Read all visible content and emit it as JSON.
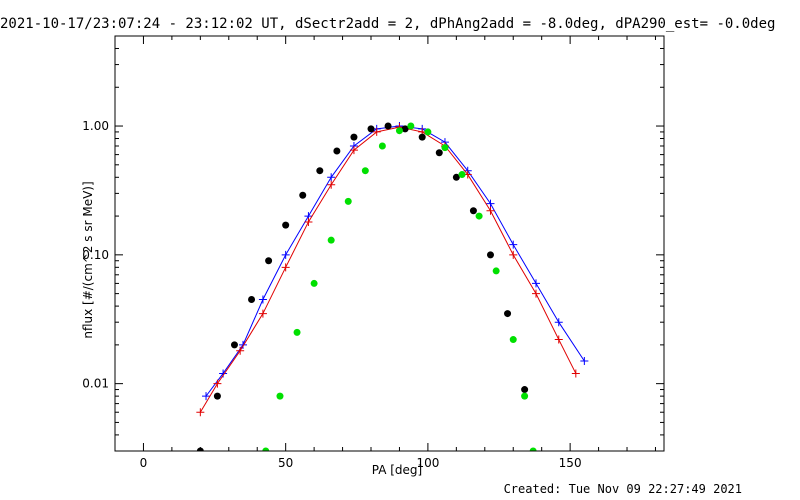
{
  "header": {
    "title": "2021-10-17/23:07:24 - 23:12:02 UT, dSectr2add = 2, dPhAng2add = -8.0deg, dPA290_est= -0.0deg"
  },
  "footer": {
    "created": "Created: Tue Nov 09 22:27:49 2021"
  },
  "chart_data": {
    "type": "line",
    "title": "2021-10-17/23:07:24 - 23:12:02 UT, dSectr2add = 2, dPhAng2add = -8.0deg, dPA290_est= -0.0deg",
    "xlabel": "PA [deg]",
    "ylabel": "nflux [#/(cm^2 s sr MeV)]",
    "xlim": [
      -10,
      183
    ],
    "ylim": [
      0.003,
      5
    ],
    "yscale": "log",
    "x_ticks": [
      "0",
      "50",
      "100",
      "150"
    ],
    "y_ticks": [
      "0.01",
      "0.10",
      "1.00"
    ],
    "grid": false,
    "colors": {
      "red_series": "#e00000",
      "blue_series": "#0000ff",
      "black_fit": "#000000",
      "green_fit": "#00e000"
    },
    "series": [
      {
        "color": "#0000ff",
        "marker": "plus",
        "x": [
          22,
          28,
          35,
          42,
          50,
          58,
          66,
          74,
          82,
          90,
          98,
          106,
          114,
          122,
          130,
          138,
          146,
          155
        ],
        "y": [
          0.008,
          0.012,
          0.02,
          0.045,
          0.1,
          0.2,
          0.4,
          0.7,
          0.95,
          1.0,
          0.95,
          0.75,
          0.45,
          0.25,
          0.12,
          0.06,
          0.03,
          0.015
        ]
      },
      {
        "color": "#e00000",
        "marker": "plus",
        "x": [
          20,
          26,
          34,
          42,
          50,
          58,
          66,
          74,
          82,
          90,
          98,
          106,
          114,
          122,
          130,
          138,
          146,
          152
        ],
        "y": [
          0.006,
          0.01,
          0.018,
          0.035,
          0.08,
          0.18,
          0.35,
          0.65,
          0.9,
          0.98,
          0.9,
          0.7,
          0.42,
          0.22,
          0.1,
          0.05,
          0.022,
          0.012
        ]
      },
      {
        "color": "#000000",
        "marker": "filled-circle",
        "x": [
          20,
          26,
          32,
          38,
          44,
          50,
          56,
          62,
          68,
          74,
          80,
          86,
          92,
          98,
          104,
          110,
          116,
          122,
          128,
          134
        ],
        "y": [
          0.003,
          0.008,
          0.02,
          0.045,
          0.09,
          0.17,
          0.29,
          0.45,
          0.64,
          0.82,
          0.95,
          1.0,
          0.95,
          0.82,
          0.62,
          0.4,
          0.22,
          0.1,
          0.035,
          0.009
        ]
      },
      {
        "color": "#00e000",
        "marker": "filled-circle",
        "x": [
          43,
          48,
          54,
          60,
          66,
          72,
          78,
          84,
          90,
          94,
          100,
          106,
          112,
          118,
          124,
          130,
          134,
          137
        ],
        "y": [
          0.003,
          0.008,
          0.025,
          0.06,
          0.13,
          0.26,
          0.45,
          0.7,
          0.92,
          1.0,
          0.9,
          0.68,
          0.42,
          0.2,
          0.075,
          0.022,
          0.008,
          0.003
        ]
      }
    ]
  }
}
